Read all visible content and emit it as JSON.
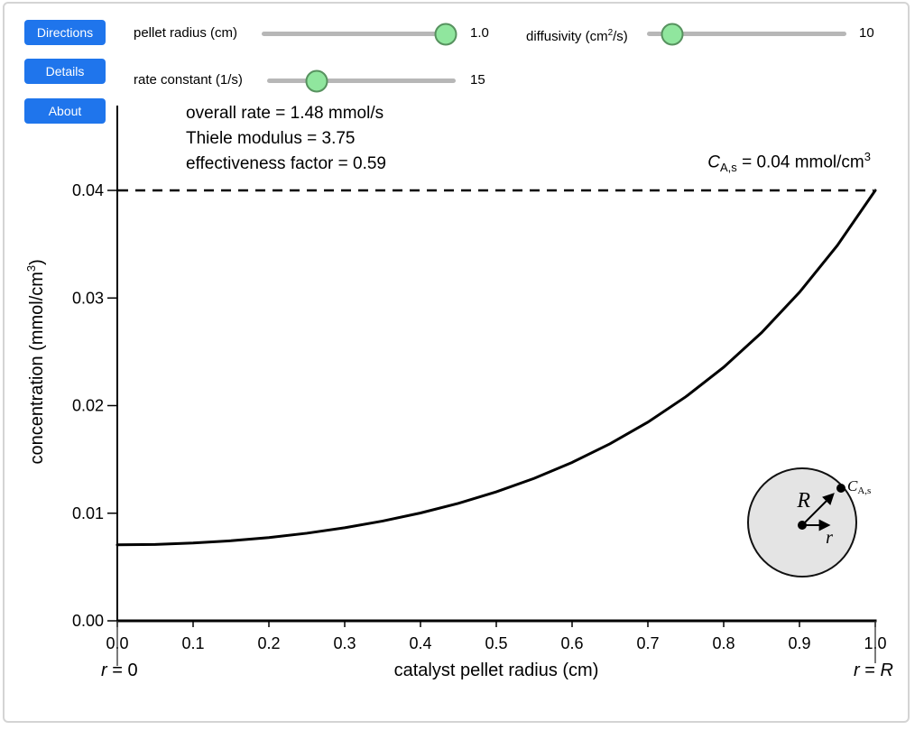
{
  "buttons": {
    "directions": "Directions",
    "details": "Details",
    "about": "About"
  },
  "sliders": {
    "pellet_radius": {
      "label": "pellet radius (cm)",
      "value": "1.0",
      "fraction": 0.944
    },
    "diffusivity": {
      "label_pre": "diffusivity (cm",
      "label_sup": "2",
      "label_post": "/s)",
      "value": "10",
      "fraction": 0.127
    },
    "rate_constant": {
      "label": "rate constant (1/s)",
      "value": "15",
      "fraction": 0.263
    }
  },
  "stats": {
    "overall_rate": "overall rate = 1.48 mmol/s",
    "thiele_modulus": "Thiele modulus = 3.75",
    "effectiveness_factor": "effectiveness factor = 0.59"
  },
  "surface_label": {
    "var": "C",
    "sub": "A,s",
    "mid": " = 0.04 mmol/cm",
    "sup": "3"
  },
  "axes": {
    "y_label_pre": "concentration (mmol/cm",
    "y_label_sup": "3",
    "y_label_post": ")",
    "x_label": "catalyst pellet radius (cm)",
    "left_end": {
      "var": "r",
      "rest": " = 0"
    },
    "right_end": {
      "var": "r",
      "eq": " = ",
      "var2": "R"
    }
  },
  "inset": {
    "radius_label": "R",
    "r_label": "r",
    "surface_var": "C",
    "surface_sub": "A,s"
  },
  "colors": {
    "accent_blue": "#1f75ec",
    "slider_thumb_green": "#90e69e",
    "slider_thumb_border": "#57925f",
    "track_gray": "#b7b7b7",
    "curve_black": "#000000",
    "inset_fill": "#e4e4e4"
  },
  "chart_data": {
    "type": "line",
    "title": "",
    "xlabel": "catalyst pellet radius (cm)",
    "ylabel": "concentration (mmol/cm3)",
    "xlim": [
      0,
      1
    ],
    "ylim": [
      0,
      0.04
    ],
    "grid": false,
    "x_ticks": {
      "values": [
        0,
        0.1,
        0.2,
        0.3,
        0.4,
        0.5,
        0.6,
        0.7,
        0.8,
        0.9,
        1.0
      ],
      "labels": [
        "0.0",
        "0.1",
        "0.2",
        "0.3",
        "0.4",
        "0.5",
        "0.6",
        "0.7",
        "0.8",
        "0.9",
        "1.0"
      ]
    },
    "y_ticks": {
      "values": [
        0,
        0.01,
        0.02,
        0.03,
        0.04
      ],
      "labels": [
        "0.00",
        "0.01",
        "0.02",
        "0.03",
        "0.04"
      ]
    },
    "dashed_line_y": 0.04,
    "annotations": [
      "overall rate = 1.48 mmol/s",
      "Thiele modulus = 3.75",
      "effectiveness factor = 0.59",
      "C_A,s = 0.04 mmol/cm^3",
      "r = 0 at left axis end",
      "r = R at right axis end"
    ],
    "series": [
      {
        "name": "concentration profile",
        "x": [
          0,
          0.05,
          0.1,
          0.15,
          0.2,
          0.25,
          0.3,
          0.35,
          0.4,
          0.45,
          0.5,
          0.55,
          0.6,
          0.65,
          0.7,
          0.75,
          0.8,
          0.85,
          0.9,
          0.95,
          1.0
        ],
        "y": [
          0.00706,
          0.0071,
          0.00723,
          0.00744,
          0.00774,
          0.00814,
          0.00865,
          0.00927,
          0.01002,
          0.01092,
          0.01199,
          0.01324,
          0.01472,
          0.01645,
          0.01846,
          0.02082,
          0.02357,
          0.02678,
          0.03053,
          0.03489,
          0.04
        ]
      }
    ]
  }
}
